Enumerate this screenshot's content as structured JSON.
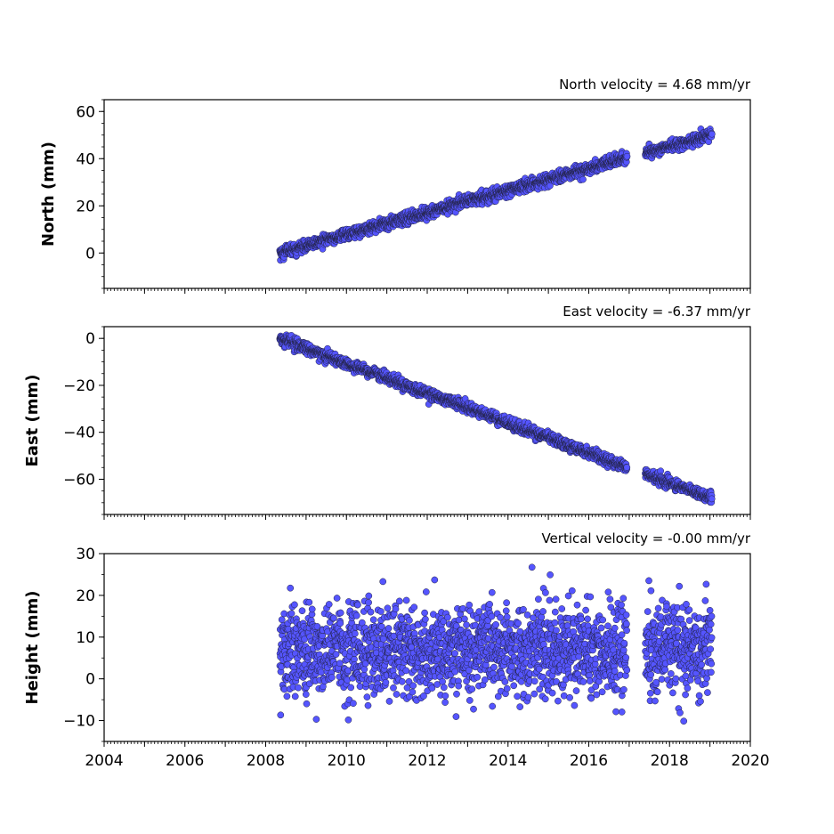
{
  "chart_data": [
    {
      "type": "scatter",
      "title": "North velocity = 4.68 mm/yr",
      "xlabel": "",
      "ylabel": "North (mm)",
      "xlim": [
        2004,
        2020
      ],
      "ylim": [
        -15,
        65
      ],
      "x_ticks": [
        2004,
        2006,
        2008,
        2010,
        2012,
        2014,
        2016,
        2018,
        2020
      ],
      "x_tick_labels": [
        "",
        "",
        "",
        "",
        "",
        "",
        "",
        "",
        ""
      ],
      "y_ticks": [
        0,
        20,
        40,
        60
      ],
      "y_tick_labels": [
        "0",
        "20",
        "40",
        "60"
      ],
      "velocity": 4.68,
      "x_range": [
        2008.35,
        2019.05
      ],
      "y_at_start": 0,
      "scatter_sd": 1.2,
      "gaps": [
        [
          2016.95,
          2017.4
        ]
      ],
      "marker_color": "#5555ff",
      "marker_edge": "#222244",
      "grid": false
    },
    {
      "type": "scatter",
      "title": "East velocity = -6.37 mm/yr",
      "xlabel": "",
      "ylabel": "East (mm)",
      "xlim": [
        2004,
        2020
      ],
      "ylim": [
        -75,
        5
      ],
      "x_ticks": [
        2004,
        2006,
        2008,
        2010,
        2012,
        2014,
        2016,
        2018,
        2020
      ],
      "x_tick_labels": [
        "",
        "",
        "",
        "",
        "",
        "",
        "",
        "",
        ""
      ],
      "y_ticks": [
        0,
        -20,
        -40,
        -60
      ],
      "y_tick_labels": [
        "0",
        "−20",
        "−40",
        "−60"
      ],
      "velocity": -6.37,
      "x_range": [
        2008.35,
        2019.05
      ],
      "y_at_start": 0,
      "scatter_sd": 1.1,
      "gaps": [
        [
          2016.95,
          2017.4
        ]
      ],
      "marker_color": "#5555ff",
      "marker_edge": "#222244",
      "grid": false
    },
    {
      "type": "scatter",
      "title": "Vertical velocity = -0.00 mm/yr",
      "xlabel": "",
      "ylabel": "Height (mm)",
      "xlim": [
        2004,
        2020
      ],
      "ylim": [
        -15,
        30
      ],
      "x_ticks": [
        2004,
        2006,
        2008,
        2010,
        2012,
        2014,
        2016,
        2018,
        2020
      ],
      "x_tick_labels": [
        "2004",
        "2006",
        "2008",
        "2010",
        "2012",
        "2014",
        "2016",
        "2018",
        "2020"
      ],
      "y_ticks": [
        -10,
        0,
        10,
        20,
        30
      ],
      "y_tick_labels": [
        "−10",
        "0",
        "10",
        "20",
        "30"
      ],
      "velocity": 0.0,
      "x_range": [
        2008.35,
        2019.05
      ],
      "y_at_start": 7,
      "scatter_sd": 5.5,
      "gaps": [
        [
          2016.95,
          2017.4
        ]
      ],
      "marker_color": "#5555ff",
      "marker_edge": "#222244",
      "grid": false
    }
  ]
}
